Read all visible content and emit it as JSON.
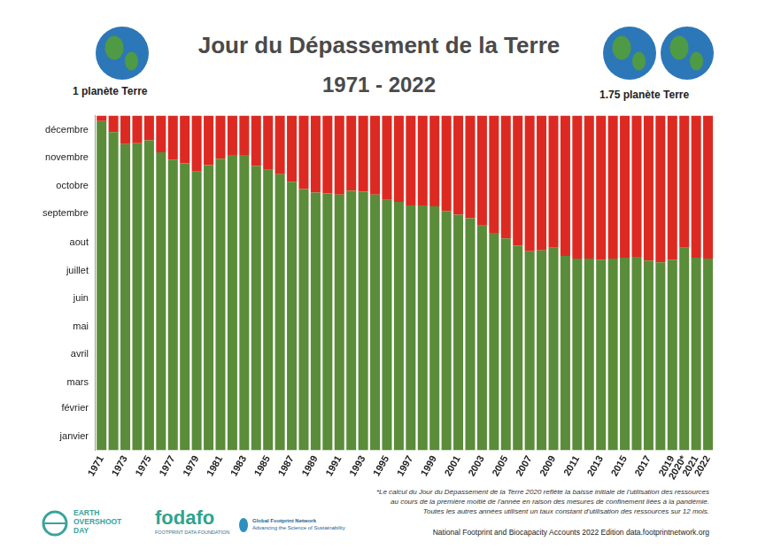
{
  "chart_data": {
    "type": "bar",
    "title": "Jour du Dépassement de la Terre",
    "subtitle": "1971 - 2022",
    "annotations": [
      "1 planète Terre",
      "1.75 planète Terre",
      "*Le calcul du Jour du Dépassement de la Terre 2020 reflète la baisse initiale de l'utilisation des ressources",
      "au cours de la première moitié de l'année en raison des mesures de confinement liées à la pandémie.",
      "Toutes les autres années utilisent un taux constant d'utilisation des ressources sur 12 mois.",
      "National Footprint and Biocapacity Accounts 2022  Edition data.footprintnetwork.org",
      "EARTH",
      "OVERSHOOT",
      "DAY",
      "fodafo",
      "FOOTPRINT DATA FOUNDATION",
      "Global Footprint Network",
      "Advancing the Science of Sustainability"
    ],
    "categories": [
      "1971",
      null,
      "1973",
      null,
      "1975",
      null,
      "1977",
      null,
      "1979",
      null,
      "1981",
      null,
      "1983",
      null,
      "1985",
      null,
      "1987",
      null,
      "1989",
      null,
      "1991",
      null,
      "1993",
      null,
      "1995",
      null,
      "1997",
      null,
      "1999",
      null,
      "2001",
      null,
      "2003",
      null,
      "2005",
      null,
      "2007",
      null,
      "2009",
      null,
      "2011",
      null,
      "2013",
      null,
      "2015",
      null,
      "2017",
      null,
      "2019",
      "2020*",
      "2021",
      "2022"
    ],
    "values": [
      359,
      347,
      334,
      335,
      338,
      325,
      317,
      313,
      304,
      311,
      318,
      322,
      322,
      310,
      306,
      301,
      293,
      285,
      281,
      280,
      279,
      283,
      282,
      279,
      273,
      271,
      267,
      267,
      266,
      261,
      257,
      253,
      245,
      237,
      231,
      223,
      217,
      218,
      221,
      212,
      209,
      209,
      208,
      209,
      210,
      211,
      207,
      205,
      208,
      221,
      210,
      209
    ],
    "color": "#5a8c3a",
    "ylim": [
      0,
      365
    ],
    "yticks": [
      {
        "value": 15,
        "label": "janvier"
      },
      {
        "value": 46,
        "label": "février"
      },
      {
        "value": 74,
        "label": "mars"
      },
      {
        "value": 105,
        "label": "avril"
      },
      {
        "value": 135,
        "label": "mai"
      },
      {
        "value": 166,
        "label": "juin"
      },
      {
        "value": 196,
        "label": "juillet"
      },
      {
        "value": 227,
        "label": "aout"
      },
      {
        "value": 258,
        "label": "septembre"
      },
      {
        "value": 288,
        "label": "octobre"
      },
      {
        "value": 319,
        "label": "novembre"
      },
      {
        "value": 349,
        "label": "décembre"
      }
    ],
    "grid": false
  }
}
